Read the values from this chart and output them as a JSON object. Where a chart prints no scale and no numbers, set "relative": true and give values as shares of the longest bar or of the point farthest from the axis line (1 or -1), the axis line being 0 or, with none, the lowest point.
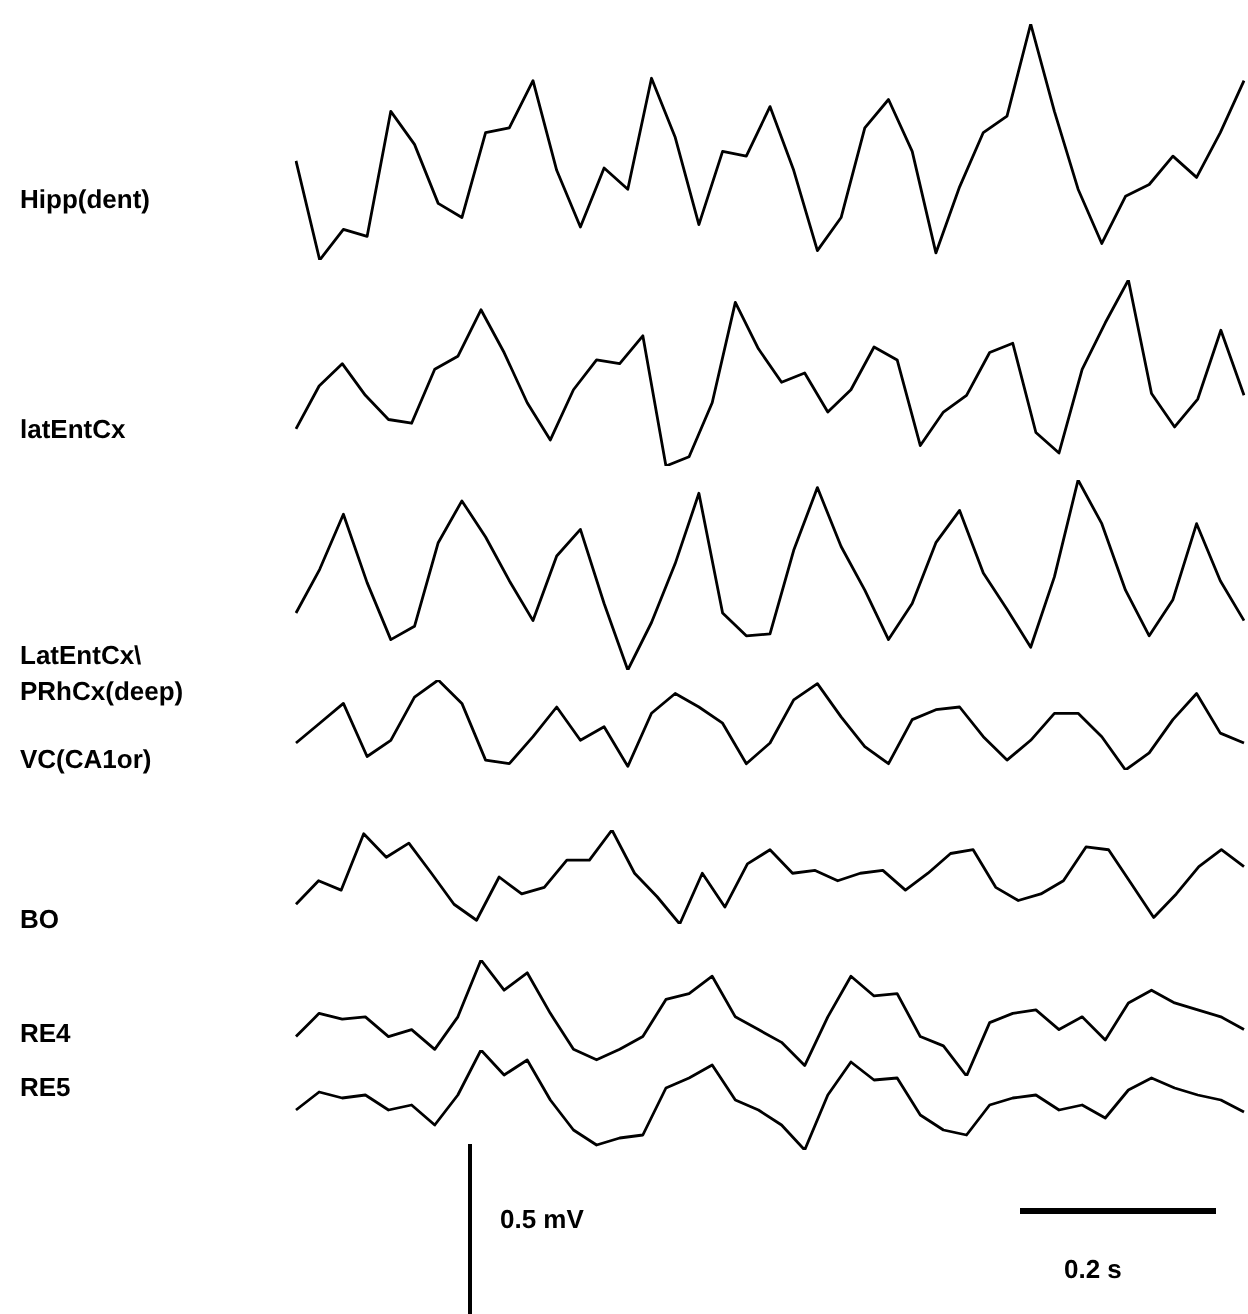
{
  "chart_data": [
    {
      "type": "line",
      "ylabel": "Hipp(dent)",
      "relative": true,
      "categories": [
        null,
        null,
        null,
        null,
        null,
        null,
        null,
        null,
        null,
        null,
        null,
        null,
        null,
        null,
        null,
        null,
        null,
        null,
        null,
        null,
        null,
        null,
        null,
        null,
        null,
        null,
        null,
        null,
        null,
        null,
        null,
        null,
        null,
        null,
        null,
        null,
        null,
        null,
        null,
        null,
        null
      ],
      "series": [
        {
          "color": "#000000",
          "values": [
            0.42,
            0,
            0.13,
            0.1,
            0.63,
            0.49,
            0.24,
            0.18,
            0.54,
            0.56,
            0.76,
            0.38,
            0.14,
            0.39,
            0.3,
            0.77,
            0.52,
            0.15,
            0.46,
            0.44,
            0.65,
            0.38,
            0.04,
            0.18,
            0.56,
            0.68,
            0.46,
            0.03,
            0.31,
            0.54,
            0.61,
            1,
            0.63,
            0.3,
            0.07,
            0.27,
            0.32,
            0.44,
            0.35,
            0.54,
            0.76
          ]
        }
      ]
    },
    {
      "type": "line",
      "ylabel": "latEntCx",
      "relative": true,
      "categories": [
        null,
        null,
        null,
        null,
        null,
        null,
        null,
        null,
        null,
        null,
        null,
        null,
        null,
        null,
        null,
        null,
        null,
        null,
        null,
        null,
        null,
        null,
        null,
        null,
        null,
        null,
        null,
        null,
        null,
        null,
        null,
        null,
        null,
        null,
        null,
        null,
        null,
        null,
        null,
        null,
        null,
        null
      ],
      "series": [
        {
          "color": "#000000",
          "values": [
            0.2,
            0.43,
            0.55,
            0.38,
            0.25,
            0.23,
            0.52,
            0.59,
            0.84,
            0.61,
            0.34,
            0.14,
            0.41,
            0.57,
            0.55,
            0.7,
            0,
            0.05,
            0.34,
            0.88,
            0.63,
            0.45,
            0.5,
            0.29,
            0.41,
            0.64,
            0.57,
            0.11,
            0.29,
            0.38,
            0.61,
            0.66,
            0.18,
            0.07,
            0.52,
            0.77,
            1,
            0.39,
            0.21,
            0.36,
            0.73,
            0.38
          ]
        }
      ]
    },
    {
      "type": "line",
      "ylabel": "LatEntCx\\\nPRhCx(deep)",
      "relative": true,
      "categories": [
        null,
        null,
        null,
        null,
        null,
        null,
        null,
        null,
        null,
        null,
        null,
        null,
        null,
        null,
        null,
        null,
        null,
        null,
        null,
        null,
        null,
        null,
        null,
        null,
        null,
        null,
        null,
        null,
        null,
        null,
        null,
        null,
        null,
        null,
        null,
        null,
        null,
        null,
        null,
        null,
        null
      ],
      "series": [
        {
          "color": "#000000",
          "values": [
            0.3,
            0.53,
            0.82,
            0.46,
            0.16,
            0.23,
            0.67,
            0.89,
            0.7,
            0.47,
            0.26,
            0.6,
            0.74,
            0.35,
            0,
            0.25,
            0.56,
            0.93,
            0.3,
            0.18,
            0.19,
            0.63,
            0.96,
            0.65,
            0.42,
            0.16,
            0.35,
            0.67,
            0.84,
            0.51,
            0.32,
            0.12,
            0.49,
            1,
            0.77,
            0.42,
            0.18,
            0.37,
            0.77,
            0.47,
            0.26
          ]
        }
      ]
    },
    {
      "type": "line",
      "ylabel": "VC(CA1or)",
      "relative": true,
      "categories": [
        null,
        null,
        null,
        null,
        null,
        null,
        null,
        null,
        null,
        null,
        null,
        null,
        null,
        null,
        null,
        null,
        null,
        null,
        null,
        null,
        null,
        null,
        null,
        null,
        null,
        null,
        null,
        null,
        null,
        null,
        null,
        null,
        null,
        null,
        null,
        null,
        null,
        null,
        null,
        null,
        null
      ],
      "series": [
        {
          "color": "#000000",
          "values": [
            0.3,
            0.52,
            0.74,
            0.15,
            0.33,
            0.81,
            1,
            0.74,
            0.11,
            0.07,
            0.37,
            0.7,
            0.33,
            0.48,
            0.04,
            0.63,
            0.85,
            0.7,
            0.52,
            0.07,
            0.3,
            0.78,
            0.96,
            0.59,
            0.26,
            0.07,
            0.56,
            0.67,
            0.7,
            0.37,
            0.11,
            0.33,
            0.63,
            0.63,
            0.37,
            0,
            0.19,
            0.56,
            0.85,
            0.41,
            0.3
          ]
        }
      ]
    },
    {
      "type": "line",
      "ylabel": "BO",
      "relative": true,
      "categories": [
        null,
        null,
        null,
        null,
        null,
        null,
        null,
        null,
        null,
        null,
        null,
        null,
        null,
        null,
        null,
        null,
        null,
        null,
        null,
        null,
        null,
        null,
        null,
        null,
        null,
        null,
        null,
        null,
        null,
        null,
        null,
        null,
        null,
        null,
        null,
        null,
        null,
        null,
        null,
        null,
        null,
        null,
        null
      ],
      "series": [
        {
          "color": "#000000",
          "values": [
            0.21,
            0.46,
            0.36,
            0.96,
            0.71,
            0.86,
            0.54,
            0.21,
            0.04,
            0.5,
            0.32,
            0.39,
            0.68,
            0.68,
            1,
            0.54,
            0.29,
            0,
            0.54,
            0.18,
            0.64,
            0.79,
            0.54,
            0.57,
            0.46,
            0.54,
            0.57,
            0.36,
            0.54,
            0.75,
            0.79,
            0.39,
            0.25,
            0.32,
            0.46,
            0.82,
            0.79,
            0.43,
            0.07,
            0.32,
            0.61,
            0.79,
            0.61
          ]
        }
      ]
    },
    {
      "type": "line",
      "ylabel": "RE4",
      "relative": true,
      "categories": [
        null,
        null,
        null,
        null,
        null,
        null,
        null,
        null,
        null,
        null,
        null,
        null,
        null,
        null,
        null,
        null,
        null,
        null,
        null,
        null,
        null,
        null,
        null,
        null,
        null,
        null,
        null,
        null,
        null,
        null,
        null,
        null,
        null,
        null,
        null,
        null,
        null,
        null,
        null,
        null,
        null,
        null
      ],
      "series": [
        {
          "color": "#000000",
          "values": [
            0.34,
            0.54,
            0.49,
            0.51,
            0.34,
            0.4,
            0.23,
            0.51,
            1,
            0.74,
            0.89,
            0.54,
            0.23,
            0.14,
            0.23,
            0.34,
            0.66,
            0.71,
            0.86,
            0.51,
            0.4,
            0.29,
            0.09,
            0.51,
            0.86,
            0.69,
            0.71,
            0.34,
            0.26,
            0,
            0.46,
            0.54,
            0.57,
            0.4,
            0.51,
            0.31,
            0.63,
            0.74,
            0.63,
            0.57,
            0.51,
            0.4
          ]
        }
      ]
    },
    {
      "type": "line",
      "ylabel": "RE5",
      "relative": true,
      "annotations": [
        "0.5 mV",
        "0.2 s"
      ],
      "categories": [
        null,
        null,
        null,
        null,
        null,
        null,
        null,
        null,
        null,
        null,
        null,
        null,
        null,
        null,
        null,
        null,
        null,
        null,
        null,
        null,
        null,
        null,
        null,
        null,
        null,
        null,
        null,
        null,
        null,
        null,
        null,
        null,
        null,
        null,
        null,
        null,
        null,
        null,
        null,
        null,
        null,
        null
      ],
      "series": [
        {
          "color": "#000000",
          "values": [
            0.4,
            0.58,
            0.52,
            0.55,
            0.4,
            0.45,
            0.25,
            0.55,
            1,
            0.75,
            0.9,
            0.5,
            0.2,
            0.05,
            0.12,
            0.15,
            0.62,
            0.72,
            0.85,
            0.5,
            0.4,
            0.25,
            0.0,
            0.55,
            0.88,
            0.7,
            0.72,
            0.35,
            0.2,
            0.15,
            0.45,
            0.52,
            0.55,
            0.4,
            0.45,
            0.32,
            0.6,
            0.72,
            0.62,
            0.55,
            0.5,
            0.38
          ]
        }
      ]
    }
  ]
}
